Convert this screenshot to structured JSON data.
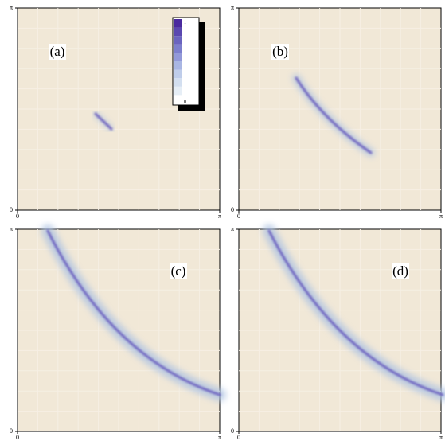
{
  "chart_data": [
    {
      "type": "density",
      "label": "(a)",
      "xlim": [
        0,
        3.14159
      ],
      "ylim": [
        0,
        3.14159
      ],
      "xticks": [
        0,
        {
          "value": 3.14159,
          "label": "π"
        }
      ],
      "yticks": [
        0,
        {
          "value": 3.14159,
          "label": "π"
        }
      ],
      "colorbar": {
        "ticks": [
          0,
          1
        ],
        "colors": [
          "#ffffff",
          "#e6eef6",
          "#d3dff0",
          "#bfcdea",
          "#a9b6e3",
          "#9299d9",
          "#7c7fcd",
          "#6a64bf",
          "#5a48b0",
          "#4a2a9e"
        ]
      }
    },
    {
      "type": "density",
      "label": "(b)",
      "xlim": [
        0,
        3.14159
      ],
      "ylim": [
        0,
        3.14159
      ],
      "xticks": [
        0,
        {
          "value": 3.14159,
          "label": "π"
        }
      ],
      "yticks": [
        0,
        {
          "value": 3.14159,
          "label": "π"
        }
      ]
    },
    {
      "type": "density",
      "label": "(c)",
      "xlim": [
        0,
        3.14159
      ],
      "ylim": [
        0,
        3.14159
      ],
      "xticks": [
        0,
        {
          "value": 3.14159,
          "label": "π"
        }
      ],
      "yticks": [
        0,
        {
          "value": 3.14159,
          "label": "π"
        }
      ]
    },
    {
      "type": "density",
      "label": "(d)",
      "xlim": [
        0,
        3.14159
      ],
      "ylim": [
        0,
        3.14159
      ],
      "xticks": [
        0,
        {
          "value": 3.14159,
          "label": "π"
        }
      ],
      "yticks": [
        0,
        {
          "value": 3.14159,
          "label": "π"
        }
      ]
    }
  ]
}
